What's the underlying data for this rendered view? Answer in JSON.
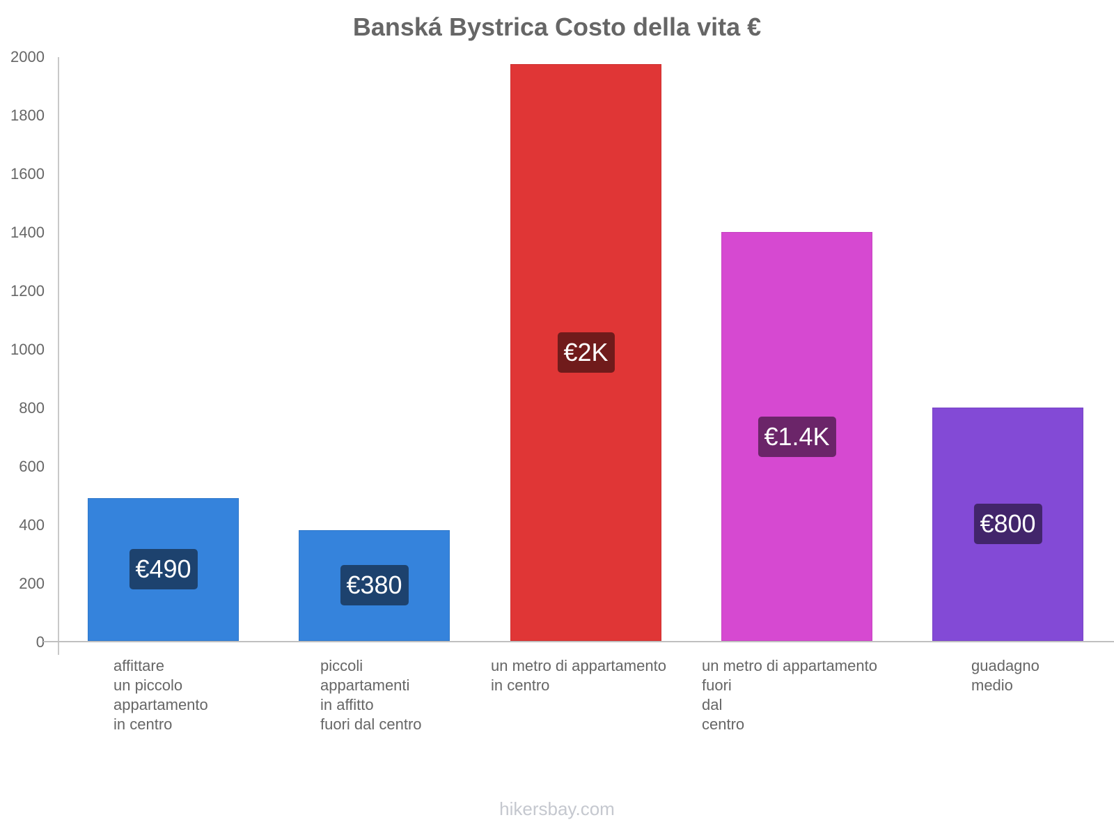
{
  "chart_data": {
    "type": "bar",
    "title": "Banská Bystrica Costo della vita €",
    "xlabel": "",
    "ylabel": "",
    "ylim": [
      0,
      2000
    ],
    "yticks": [
      0,
      200,
      400,
      600,
      800,
      1000,
      1200,
      1400,
      1600,
      1800,
      2000
    ],
    "grid": false,
    "legend": null,
    "categories": [
      "affittare un piccolo appartamento in centro",
      "piccoli appartamenti in affitto fuori dal centro",
      "un metro di appartamento in centro",
      "un metro di appartamento fuori dal centro",
      "guadagno medio"
    ],
    "values": [
      490,
      380,
      1975,
      1400,
      800
    ],
    "value_labels": [
      "€490",
      "€380",
      "€2K",
      "€1.4K",
      "€800"
    ],
    "colors": [
      "#3583dc",
      "#3583dc",
      "#e03636",
      "#d649d1",
      "#834ad6"
    ],
    "label_bg_colors": [
      "#1d426e",
      "#1d426e",
      "#701b1b",
      "#6b2569",
      "#42256b"
    ]
  },
  "title": "Banská Bystrica Costo della vita €",
  "yticks": [
    "0",
    "200",
    "400",
    "600",
    "800",
    "1000",
    "1200",
    "1400",
    "1600",
    "1800",
    "2000"
  ],
  "bars": [
    {
      "label": "€490",
      "xlabel": "affittare\nun piccolo\nappartamento\nin centro"
    },
    {
      "label": "€380",
      "xlabel": "piccoli\nappartamenti\nin affitto\nfuori dal centro"
    },
    {
      "label": "€2K",
      "xlabel": "un metro di appartamento\nin centro"
    },
    {
      "label": "€1.4K",
      "xlabel": "un metro di appartamento\nfuori\ndal\ncentro"
    },
    {
      "label": "€800",
      "xlabel": "guadagno\nmedio"
    }
  ],
  "watermark": "hikersbay.com"
}
